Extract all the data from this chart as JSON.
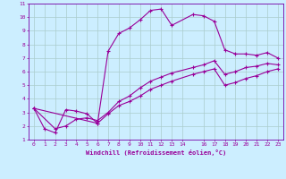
{
  "xlabel": "Windchill (Refroidissement éolien,°C)",
  "background_color": "#cceeff",
  "grid_color": "#aacccc",
  "line_color": "#990099",
  "spine_color": "#7700aa",
  "xlim": [
    -0.5,
    23.5
  ],
  "ylim": [
    1,
    11
  ],
  "xticks": [
    0,
    1,
    2,
    3,
    4,
    5,
    6,
    7,
    8,
    9,
    10,
    11,
    12,
    13,
    14,
    16,
    17,
    18,
    19,
    20,
    21,
    22,
    23
  ],
  "yticks": [
    1,
    2,
    3,
    4,
    5,
    6,
    7,
    8,
    9,
    10,
    11
  ],
  "line1_x": [
    0,
    1,
    2,
    3,
    4,
    5,
    6,
    7,
    8,
    9,
    10,
    11,
    12,
    13,
    15,
    16,
    17,
    18,
    19,
    20,
    21,
    22,
    23
  ],
  "line1_y": [
    3.3,
    1.8,
    1.5,
    3.2,
    3.1,
    2.9,
    2.2,
    7.5,
    8.8,
    9.2,
    9.8,
    10.5,
    10.6,
    9.4,
    10.2,
    10.1,
    9.7,
    7.6,
    7.3,
    7.3,
    7.2,
    7.4,
    7.0
  ],
  "line2_x": [
    0,
    2,
    3,
    4,
    5,
    6,
    7,
    8,
    9,
    10,
    11,
    12,
    13,
    15,
    16,
    17,
    18,
    19,
    20,
    21,
    22,
    23
  ],
  "line2_y": [
    3.3,
    1.8,
    2.0,
    2.5,
    2.6,
    2.4,
    3.0,
    3.8,
    4.2,
    4.8,
    5.3,
    5.6,
    5.9,
    6.3,
    6.5,
    6.8,
    5.8,
    6.0,
    6.3,
    6.4,
    6.6,
    6.5
  ],
  "line3_x": [
    0,
    6,
    7,
    8,
    9,
    10,
    11,
    12,
    13,
    15,
    16,
    17,
    18,
    19,
    20,
    21,
    22,
    23
  ],
  "line3_y": [
    3.3,
    2.2,
    2.9,
    3.5,
    3.8,
    4.2,
    4.7,
    5.0,
    5.3,
    5.8,
    6.0,
    6.2,
    5.0,
    5.2,
    5.5,
    5.7,
    6.0,
    6.2
  ]
}
